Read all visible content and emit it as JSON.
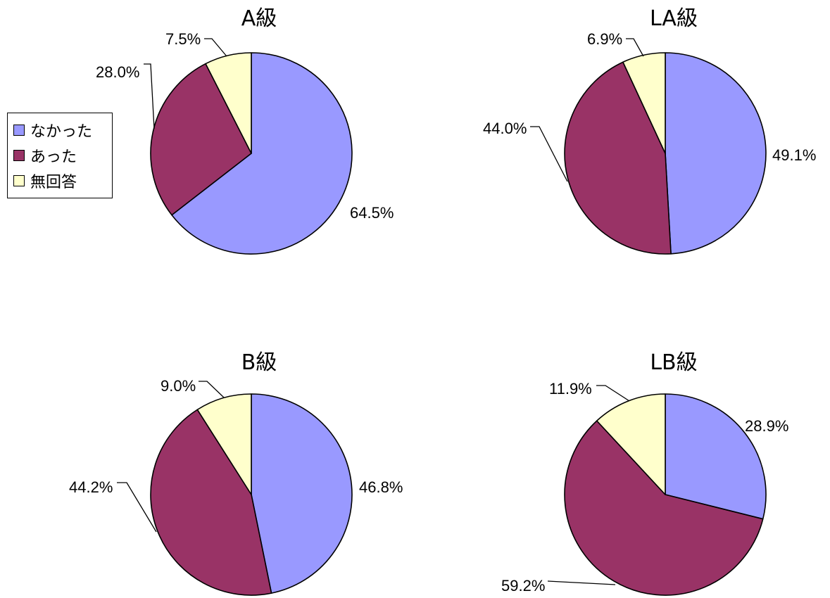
{
  "legend": {
    "items": [
      {
        "label": "なかった",
        "color": "#9999FF"
      },
      {
        "label": "あった",
        "color": "#993366"
      },
      {
        "label": "無回答",
        "color": "#FFFFCC"
      }
    ]
  },
  "chart_data": [
    {
      "type": "pie",
      "title": "A級",
      "categories": [
        "なかった",
        "あった",
        "無回答"
      ],
      "values": [
        64.5,
        28.0,
        7.5
      ],
      "labels": [
        "64.5%",
        "28.0%",
        "7.5%"
      ]
    },
    {
      "type": "pie",
      "title": "LA級",
      "categories": [
        "なかった",
        "あった",
        "無回答"
      ],
      "values": [
        49.1,
        44.0,
        6.9
      ],
      "labels": [
        "49.1%",
        "44.0%",
        "6.9%"
      ]
    },
    {
      "type": "pie",
      "title": "B級",
      "categories": [
        "なかった",
        "あった",
        "無回答"
      ],
      "values": [
        46.8,
        44.2,
        9.0
      ],
      "labels": [
        "46.8%",
        "44.2%",
        "9.0%"
      ]
    },
    {
      "type": "pie",
      "title": "LB級",
      "categories": [
        "なかった",
        "あった",
        "無回答"
      ],
      "values": [
        28.9,
        59.2,
        11.9
      ],
      "labels": [
        "28.9%",
        "59.2%",
        "11.9%"
      ]
    }
  ]
}
